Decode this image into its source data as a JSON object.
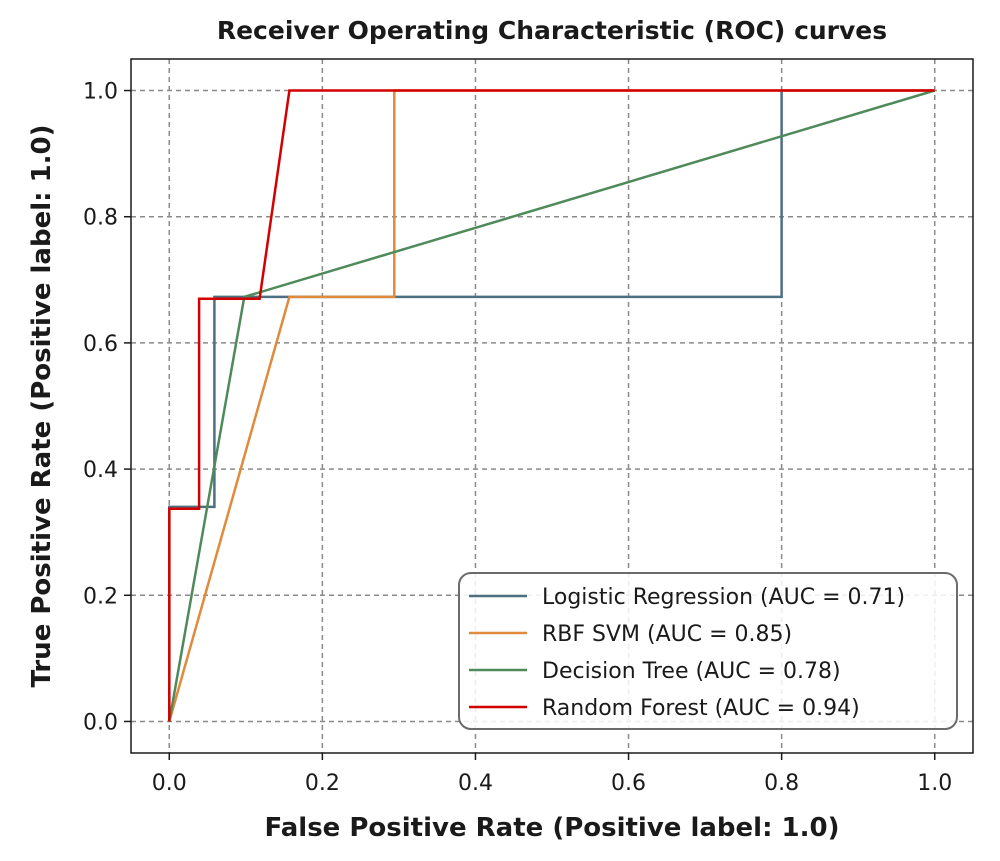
{
  "chart_data": {
    "type": "line",
    "title": "Receiver Operating Characteristic (ROC) curves",
    "xlabel": "False Positive Rate (Positive label: 1.0)",
    "ylabel": "True Positive Rate (Positive label: 1.0)",
    "xlim": [
      -0.05,
      1.05
    ],
    "ylim": [
      -0.05,
      1.05
    ],
    "xticks": [
      0.0,
      0.2,
      0.4,
      0.6,
      0.8,
      1.0
    ],
    "yticks": [
      0.0,
      0.2,
      0.4,
      0.6,
      0.8,
      1.0
    ],
    "xtick_labels": [
      "0.0",
      "0.2",
      "0.4",
      "0.6",
      "0.8",
      "1.0"
    ],
    "ytick_labels": [
      "0.0",
      "0.2",
      "0.4",
      "0.6",
      "0.8",
      "1.0"
    ],
    "grid": true,
    "legend_position": "lower-right",
    "series": [
      {
        "name": "Logistic Regression (AUC = 0.71)",
        "color": "#4e6e81",
        "x": [
          0.0,
          0.0,
          0.059,
          0.059,
          0.8,
          0.8,
          1.0
        ],
        "y": [
          0.0,
          0.34,
          0.34,
          0.673,
          0.673,
          1.0,
          1.0
        ]
      },
      {
        "name": "RBF SVM (AUC = 0.85)",
        "color": "#e08a3c",
        "x": [
          0.0,
          0.157,
          0.294,
          0.294,
          1.0
        ],
        "y": [
          0.0,
          0.673,
          0.673,
          1.0,
          1.0
        ]
      },
      {
        "name": "Decision Tree (AUC = 0.78)",
        "color": "#4f8a5b",
        "x": [
          0.0,
          0.098,
          1.0
        ],
        "y": [
          0.0,
          0.673,
          1.0
        ]
      },
      {
        "name": "Random Forest (AUC = 0.94)",
        "color": "#d40000",
        "x": [
          0.0,
          0.0,
          0.039,
          0.039,
          0.118,
          0.157,
          1.0
        ],
        "y": [
          0.0,
          0.337,
          0.337,
          0.67,
          0.67,
          1.0,
          1.0
        ]
      }
    ]
  }
}
